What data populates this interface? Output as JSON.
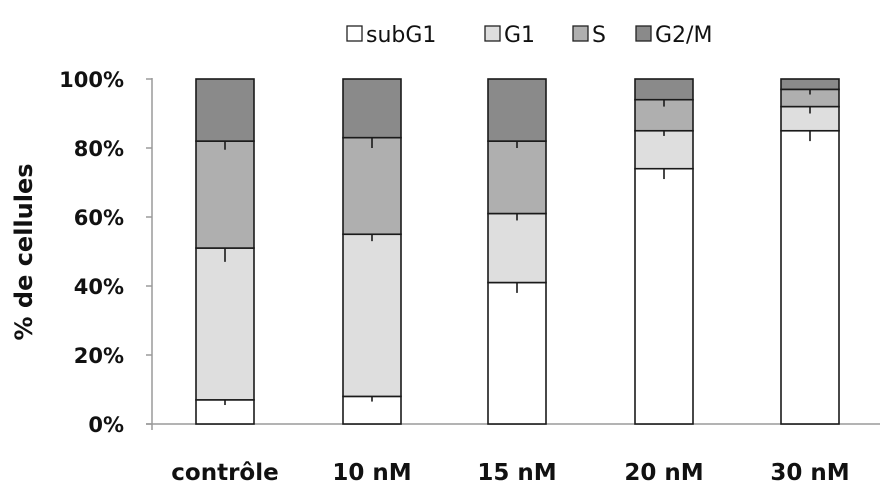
{
  "chart_data": {
    "type": "bar",
    "stacked": true,
    "percent": true,
    "categories": [
      "contrôle",
      "10 nM",
      "15 nM",
      "20 nM",
      "30 nM"
    ],
    "series": [
      {
        "name": "subG1",
        "color": "#ffffff",
        "values": [
          7,
          8,
          41,
          74,
          85
        ],
        "errors": [
          1.5,
          1.5,
          3,
          3,
          3
        ]
      },
      {
        "name": "G1",
        "color": "#dedede",
        "values": [
          44,
          47,
          20,
          11,
          7
        ],
        "errors": [
          4,
          2,
          2,
          1.5,
          2
        ]
      },
      {
        "name": "S",
        "color": "#afafaf",
        "values": [
          31,
          28,
          21,
          9,
          5
        ],
        "errors": [
          2.5,
          3,
          2,
          2,
          1.5
        ]
      },
      {
        "name": "G2/M",
        "color": "#8a8a8a",
        "values": [
          18,
          17,
          18,
          6,
          3
        ],
        "errors": [
          0,
          0,
          0,
          0,
          0
        ]
      }
    ],
    "ylabel": "% de cellules",
    "xlabel": "",
    "ylim": [
      0,
      100
    ],
    "yticks": [
      "0%",
      "20%",
      "40%",
      "60%",
      "80%",
      "100%"
    ],
    "legend_position": "top",
    "grid": false
  }
}
